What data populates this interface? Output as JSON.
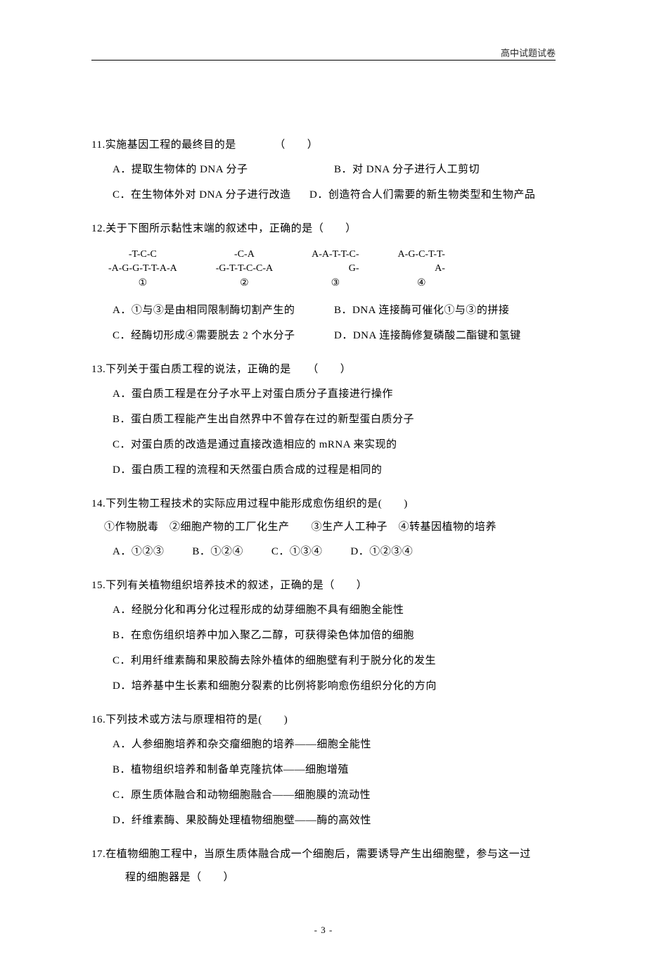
{
  "header": {
    "right": "高中试题试卷"
  },
  "q11": {
    "stem": "11.实施基因工程的最终目的是　　　　（　　）",
    "a": "A．提取生物体的 DNA 分子",
    "b": "B．对 DNA 分子进行人工剪切",
    "c": "C．在生物体外对 DNA 分子进行改造",
    "d": "D．创造符合人们需要的新生物类型和生物产品"
  },
  "q12": {
    "stem": "12.关于下图所示黏性末端的叙述中，正确的是（　　）",
    "diag": {
      "col1": {
        "top": "-T-C-C",
        "bot": "-A-G-G-T-T-A-A",
        "label": "①"
      },
      "col2": {
        "top": "-C-A",
        "bot": "-G-T-T-C-C-A",
        "label": "②"
      },
      "col3": {
        "top": "A-A-T-T-C-",
        "bot": "G-",
        "label": "③"
      },
      "col4": {
        "top": "A-G-C-T-T-",
        "bot": "A-",
        "label": "④"
      }
    },
    "a": "A．①与③是由相同限制酶切割产生的",
    "b": "B．DNA 连接酶可催化①与③的拼接",
    "c": "C．经酶切形成④需要脱去 2 个水分子",
    "d": "D．DNA 连接酶修复磷酸二酯键和氢键"
  },
  "q13": {
    "stem": "13.下列关于蛋白质工程的说法，正确的是　　（　　）",
    "a": "A．蛋白质工程是在分子水平上对蛋白质分子直接进行操作",
    "b": "B．蛋白质工程能产生出自然界中不曾存在过的新型蛋白质分子",
    "c": "C．对蛋白质的改造是通过直接改造相应的 mRNA 来实现的",
    "d": "D．蛋白质工程的流程和天然蛋白质合成的过程是相同的"
  },
  "q14": {
    "stem": "14.下列生物工程技术的实际应用过程中能形成愈伤组织的是(　　)",
    "sub": "①作物脱毒　②细胞产物的工厂化生产　　③生产人工种子　④转基因植物的培养",
    "a": "A．①②③",
    "b": "B．①②④",
    "c": "C．①③④",
    "d": "D．①②③④"
  },
  "q15": {
    "stem": "15.下列有关植物组织培养技术的叙述，正确的是（　　）",
    "a": "A．经脱分化和再分化过程形成的幼芽细胞不具有细胞全能性",
    "b": "B．在愈伤组织培养中加入聚乙二醇，可获得染色体加倍的细胞",
    "c": "C．利用纤维素酶和果胶酶去除外植体的细胞壁有利于脱分化的发生",
    "d": "D．培养基中生长素和细胞分裂素的比例将影响愈伤组织分化的方向"
  },
  "q16": {
    "stem": "16.下列技术或方法与原理相符的是(　　)",
    "a": "A．人参细胞培养和杂交瘤细胞的培养——细胞全能性",
    "b": "B．植物组织培养和制备单克隆抗体——细胞增殖",
    "c": "C．原生质体融合和动物细胞融合——细胞膜的流动性",
    "d": "D．纤维素酶、果胶酶处理植物细胞壁——酶的高效性"
  },
  "q17": {
    "stem": "17.在植物细胞工程中，当原生质体融合成一个细胞后，需要诱导产生出细胞壁，参与这一过",
    "stem2": "程的细胞器是（　　）"
  },
  "pagenum": "- 3 -"
}
